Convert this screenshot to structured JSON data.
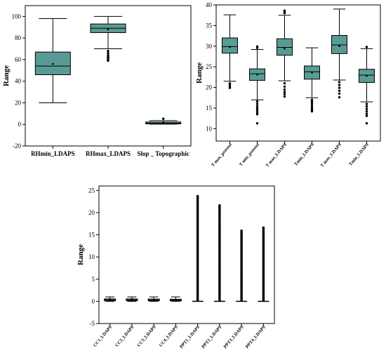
{
  "chart_data": [
    {
      "type": "box",
      "ylabel": "Range",
      "ylim": [
        -20,
        110
      ],
      "yticks": [
        -20,
        0,
        20,
        40,
        60,
        80,
        100
      ],
      "box_color": "#5a9a94",
      "categories": [
        "RHmin_LDAPS",
        "RHmax_LDAPS",
        "Slop _ Topographic"
      ],
      "boxes": [
        {
          "whisker_low": 20,
          "q1": 46,
          "median": 54,
          "mean": 56,
          "q3": 67,
          "whisker_high": 98,
          "outliers": []
        },
        {
          "whisker_low": 70,
          "q1": 85,
          "median": 89,
          "mean": 88,
          "q3": 93,
          "whisker_high": 100,
          "outliers": [
            68,
            66,
            64,
            63,
            62,
            61,
            60,
            59
          ]
        },
        {
          "whisker_low": 0.2,
          "q1": 0.5,
          "median": 1.0,
          "mean": 1.3,
          "q3": 2.2,
          "whisker_high": 3.5,
          "outliers": [
            5.2
          ]
        }
      ]
    },
    {
      "type": "box",
      "ylabel": "Range",
      "ylim": [
        7,
        40
      ],
      "yticks": [
        10,
        15,
        20,
        25,
        30,
        35,
        40
      ],
      "box_color": "#5a9a94",
      "categories": [
        "T max_present",
        "T min_present",
        "T max_LDAPS",
        "Tmin_LDAPS",
        "T max_LDAPS",
        "Tmin_LDAPS"
      ],
      "boxes": [
        {
          "whisker_low": 21.5,
          "q1": 28.3,
          "median": 29.9,
          "mean": 29.8,
          "q3": 32.0,
          "whisker_high": 37.6,
          "outliers": [
            21.0,
            20.6,
            20.2,
            19.9
          ]
        },
        {
          "whisker_low": 17.0,
          "q1": 21.7,
          "median": 23.3,
          "mean": 23.1,
          "q3": 24.5,
          "whisker_high": 29.2,
          "outliers": [
            29.6,
            29.9,
            16.6,
            16.0,
            15.4,
            14.9,
            14.4,
            13.9,
            13.5,
            11.3
          ]
        },
        {
          "whisker_low": 21.6,
          "q1": 27.8,
          "median": 29.7,
          "mean": 29.4,
          "q3": 31.8,
          "whisker_high": 37.5,
          "outliers": [
            38.0,
            38.3,
            38.6,
            21.0,
            20.2,
            19.5,
            18.9,
            18.4,
            17.8
          ]
        },
        {
          "whisker_low": 17.5,
          "q1": 22.0,
          "median": 23.8,
          "mean": 23.6,
          "q3": 25.2,
          "whisker_high": 29.6,
          "outliers": [
            17.0,
            16.5,
            16.0,
            15.5,
            15.0,
            14.6,
            14.2
          ]
        },
        {
          "whisker_low": 21.8,
          "q1": 28.2,
          "median": 30.3,
          "mean": 30.0,
          "q3": 32.6,
          "whisker_high": 39.0,
          "outliers": [
            21.3,
            20.6,
            19.9,
            19.2,
            18.5,
            17.6
          ]
        },
        {
          "whisker_low": 16.5,
          "q1": 21.2,
          "median": 23.0,
          "mean": 22.8,
          "q3": 24.4,
          "whisker_high": 29.4,
          "outliers": [
            29.8,
            16.0,
            15.4,
            14.8,
            14.2,
            13.6,
            13.1,
            11.3
          ]
        }
      ]
    },
    {
      "type": "box",
      "ylabel": "Range",
      "ylim": [
        -5,
        26
      ],
      "yticks": [
        -5,
        0,
        5,
        10,
        15,
        20,
        25
      ],
      "box_color": "#5a9a94",
      "categories": [
        "CC1_LDAPS",
        "CC2_LDAPS",
        "CC3_LDAPS",
        "CC4_LDAPS",
        "PPT1_LDAPS",
        "PPT2_LDAPS",
        "PPT3_LDAPS",
        "PPT4_LDAPS"
      ],
      "boxes": [
        {
          "whisker_low": 0,
          "q1": 0.15,
          "median": 0.35,
          "mean": 0.37,
          "q3": 0.55,
          "whisker_high": 1.0,
          "outliers": []
        },
        {
          "whisker_low": 0,
          "q1": 0.15,
          "median": 0.33,
          "mean": 0.35,
          "q3": 0.55,
          "whisker_high": 1.0,
          "outliers": []
        },
        {
          "whisker_low": 0,
          "q1": 0.13,
          "median": 0.3,
          "mean": 0.33,
          "q3": 0.52,
          "whisker_high": 1.0,
          "outliers": []
        },
        {
          "whisker_low": 0,
          "q1": 0.1,
          "median": 0.27,
          "mean": 0.3,
          "q3": 0.48,
          "whisker_high": 1.0,
          "outliers": []
        },
        {
          "whisker_low": 0,
          "q1": 0,
          "median": 0,
          "mean": 0.3,
          "q3": 0,
          "whisker_high": 0,
          "outlier_max": 23.7
        },
        {
          "whisker_low": 0,
          "q1": 0,
          "median": 0,
          "mean": 0.3,
          "q3": 0,
          "whisker_high": 0,
          "outlier_max": 21.6
        },
        {
          "whisker_low": 0,
          "q1": 0,
          "median": 0,
          "mean": 0.2,
          "q3": 0,
          "whisker_high": 0,
          "outlier_max": 15.9
        },
        {
          "whisker_low": 0,
          "q1": 0,
          "median": 0,
          "mean": 0.2,
          "q3": 0,
          "whisker_high": 0,
          "outlier_max": 16.6
        }
      ]
    }
  ]
}
